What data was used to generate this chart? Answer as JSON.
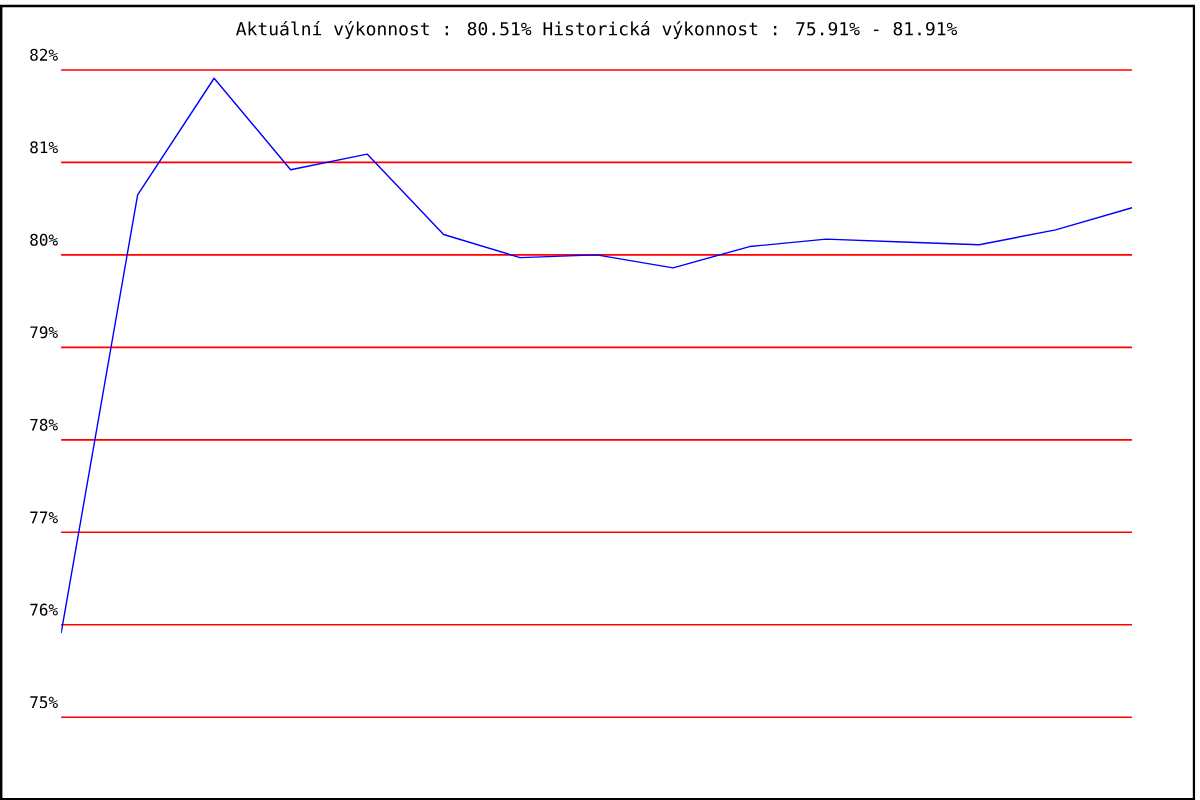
{
  "chart_data": {
    "type": "line",
    "title": "Aktuální výkonnost : 80.51%  Historická výkonnost : 75.91% - 81.91%",
    "categories": [
      null,
      null,
      null,
      null,
      null,
      null,
      null,
      null,
      null,
      null,
      null,
      null,
      null,
      null,
      null
    ],
    "values": [
      75.91,
      80.65,
      81.91,
      80.92,
      81.09,
      80.22,
      79.97,
      80.0,
      79.86,
      80.09,
      80.17,
      80.14,
      80.11,
      80.27,
      80.51
    ],
    "color": "#0000ff",
    "ylim": [
      75,
      82
    ],
    "yticks": [
      {
        "value": 75,
        "label": "75%"
      },
      {
        "value": 76,
        "label": "76%"
      },
      {
        "value": 77,
        "label": "77%"
      },
      {
        "value": 78,
        "label": "78%"
      },
      {
        "value": 79,
        "label": "79%"
      },
      {
        "value": 80,
        "label": "80%"
      },
      {
        "value": 81,
        "label": "81%"
      },
      {
        "value": 82,
        "label": "82%"
      }
    ],
    "grid": "y",
    "tick_labels": "y",
    "marker": "none"
  }
}
